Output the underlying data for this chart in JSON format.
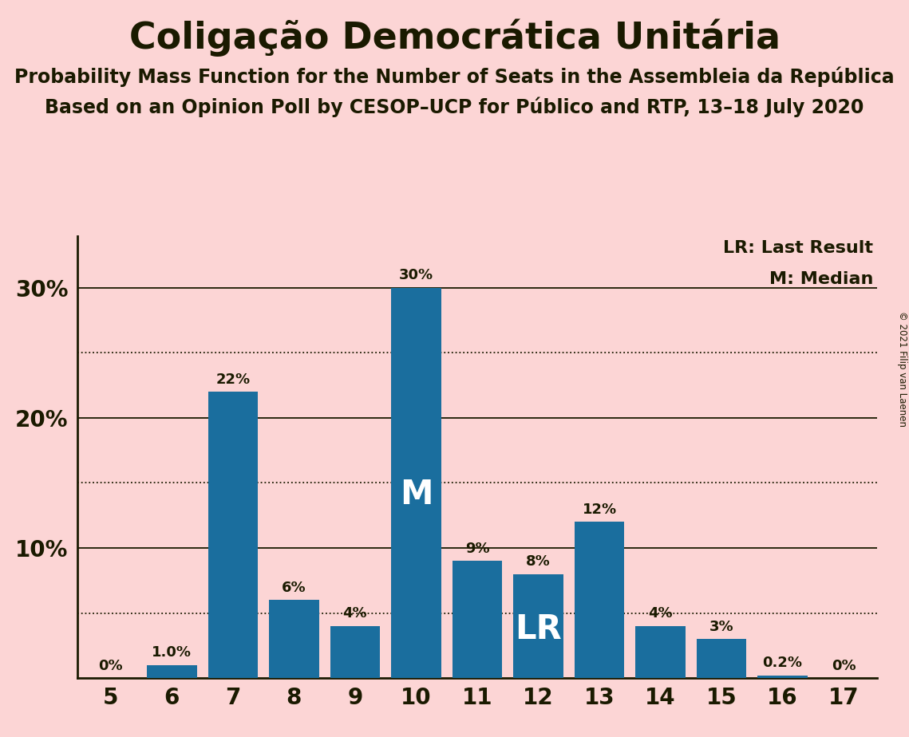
{
  "title": "Coligação Democrática Unitária",
  "subtitle1": "Probability Mass Function for the Number of Seats in the Assembleia da República",
  "subtitle2": "Based on an Opinion Poll by CESOP–UCP for Público and RTP, 13–18 July 2020",
  "copyright": "© 2021 Filip van Laenen",
  "categories": [
    5,
    6,
    7,
    8,
    9,
    10,
    11,
    12,
    13,
    14,
    15,
    16,
    17
  ],
  "values": [
    0.0,
    0.01,
    0.22,
    0.06,
    0.04,
    0.3,
    0.09,
    0.08,
    0.12,
    0.04,
    0.03,
    0.002,
    0.0
  ],
  "labels": [
    "0%",
    "1.0%",
    "22%",
    "6%",
    "4%",
    "30%",
    "9%",
    "8%",
    "12%",
    "4%",
    "3%",
    "0.2%",
    "0%"
  ],
  "bar_color": "#1a6e9e",
  "background_color": "#fcd5d5",
  "text_color": "#1a1a00",
  "median_seat": 10,
  "lr_seat": 12,
  "legend_lr": "LR: Last Result",
  "legend_m": "M: Median",
  "ylabel_ticks": [
    0.0,
    0.1,
    0.2,
    0.3
  ],
  "ylabel_labels": [
    "",
    "10%",
    "20%",
    "30%"
  ],
  "dotted_lines": [
    0.05,
    0.15,
    0.25
  ],
  "solid_lines": [
    0.1,
    0.2,
    0.3
  ],
  "ylim": [
    0,
    0.34
  ],
  "xlim": [
    4.45,
    17.55
  ],
  "bar_width": 0.82
}
